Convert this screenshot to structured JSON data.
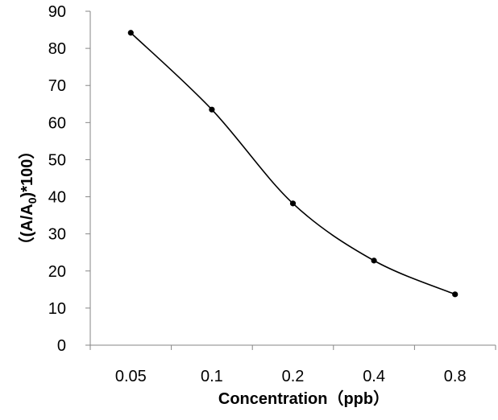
{
  "chart_data": {
    "type": "line",
    "categories": [
      "0.05",
      "0.1",
      "0.2",
      "0.4",
      "0.8"
    ],
    "series": [
      {
        "values": [
          84.2,
          63.5,
          38.2,
          22.8,
          13.7
        ],
        "color": "#000000"
      }
    ],
    "xlabel": "Concentration（ppb）",
    "ylabel": {
      "prefix": "（(A/A",
      "subscript": "0",
      "suffix": ")*100）"
    },
    "ylim": [
      0,
      90
    ],
    "yticks": [
      "0",
      "10",
      "20",
      "30",
      "40",
      "50",
      "60",
      "70",
      "80",
      "90"
    ],
    "grid": false,
    "smooth": true,
    "markers": "filled-circle",
    "axis_color": "#868686"
  }
}
